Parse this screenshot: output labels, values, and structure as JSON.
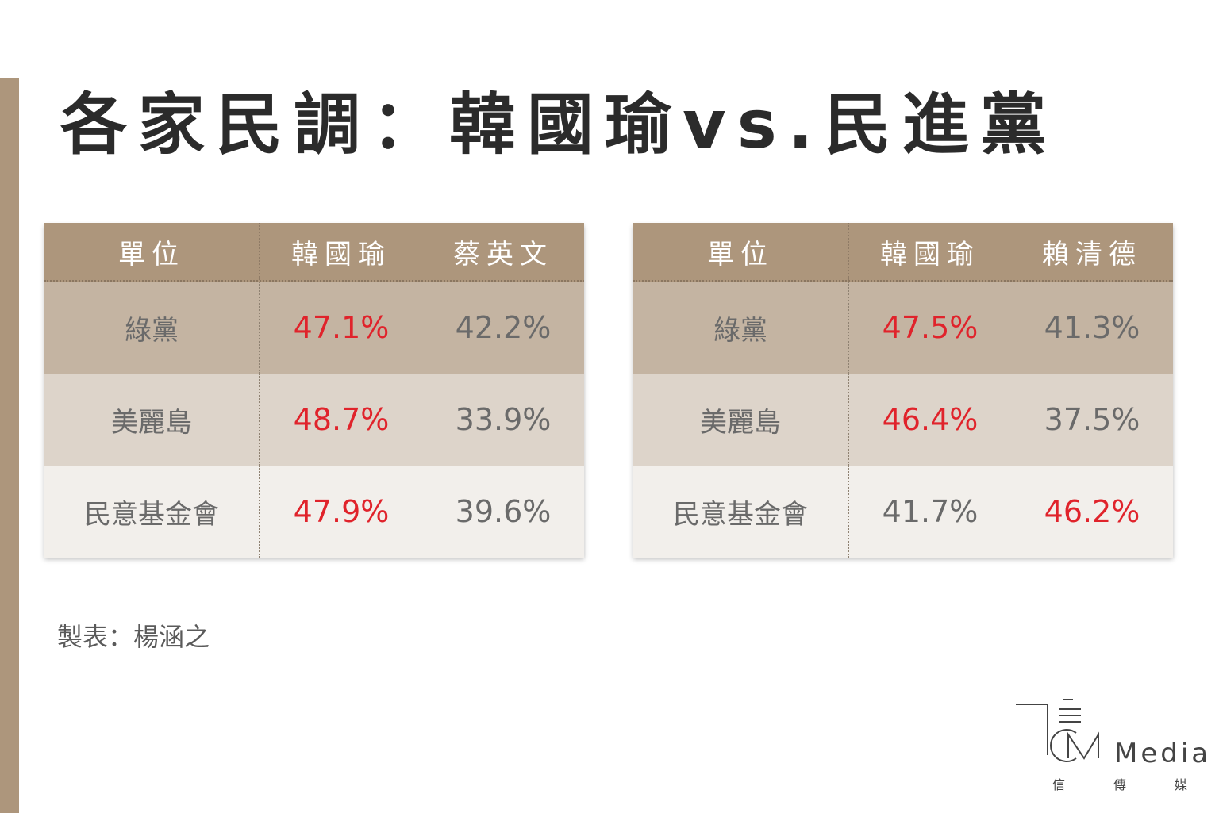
{
  "title": "各家民調：韓國瑜vs.民進黨",
  "chart_data": [
    {
      "type": "table",
      "columns": [
        "單位",
        "韓國瑜",
        "蔡英文"
      ],
      "rows": [
        [
          "綠黨",
          "47.1%",
          "42.2%"
        ],
        [
          "美麗島",
          "48.7%",
          "33.9%"
        ],
        [
          "民意基金會",
          "47.9%",
          "39.6%"
        ]
      ],
      "highlighted": [
        [
          true,
          false
        ],
        [
          true,
          false
        ],
        [
          true,
          false
        ]
      ],
      "highlight_color": "#e0232b"
    },
    {
      "type": "table",
      "columns": [
        "單位",
        "韓國瑜",
        "賴清德"
      ],
      "rows": [
        [
          "綠黨",
          "47.5%",
          "41.3%"
        ],
        [
          "美麗島",
          "46.4%",
          "37.5%"
        ],
        [
          "民意基金會",
          "41.7%",
          "46.2%"
        ]
      ],
      "highlighted": [
        [
          true,
          false
        ],
        [
          true,
          false
        ],
        [
          false,
          true
        ]
      ],
      "highlight_color": "#e0232b"
    }
  ],
  "credit": "製表：楊涵之",
  "logo": {
    "icon": "xin-media-logo-icon",
    "wordmark": "Media",
    "chinese": [
      "信",
      "傳",
      "媒"
    ]
  },
  "colors": {
    "accent": "#ad967c",
    "highlight": "#e0232b",
    "text": "#6a6a6a"
  }
}
